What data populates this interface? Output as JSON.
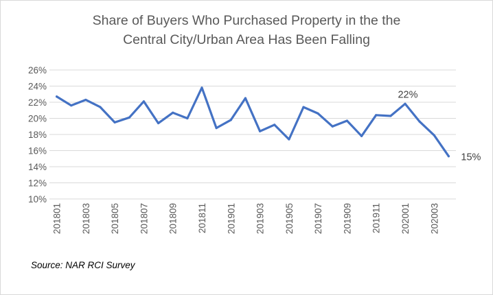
{
  "chart_data": {
    "type": "line",
    "title_lines": [
      "Share of Buyers Who Purchased Property in the the",
      "Central City/Urban Area Has Been Falling"
    ],
    "xlabel": "",
    "ylabel": "",
    "ylim": [
      10,
      26
    ],
    "ytick_step": 2,
    "ytick_labels": [
      "10%",
      "12%",
      "14%",
      "16%",
      "18%",
      "20%",
      "22%",
      "24%",
      "26%"
    ],
    "x": [
      "201801",
      "201802",
      "201803",
      "201804",
      "201805",
      "201806",
      "201807",
      "201808",
      "201809",
      "201810",
      "201811",
      "201812",
      "201901",
      "201902",
      "201903",
      "201904",
      "201905",
      "201906",
      "201907",
      "201908",
      "201909",
      "201910",
      "201911",
      "201912",
      "202001",
      "202002",
      "202003",
      "202004"
    ],
    "x_tick_labels": [
      "201801",
      "201803",
      "201805",
      "201807",
      "201809",
      "201811",
      "201901",
      "201903",
      "201905",
      "201907",
      "201909",
      "201911",
      "202001",
      "202003"
    ],
    "series": [
      {
        "values": [
          22.7,
          21.6,
          22.3,
          21.4,
          19.5,
          20.1,
          22.1,
          19.4,
          20.7,
          20.0,
          23.8,
          18.8,
          19.8,
          22.5,
          18.4,
          19.2,
          17.4,
          21.4,
          20.6,
          19.0,
          19.7,
          17.8,
          20.4,
          20.3,
          21.8,
          19.6,
          17.9,
          15.3
        ],
        "color": "#4472C4"
      }
    ],
    "annotations": [
      {
        "index": 24,
        "text": "22%"
      },
      {
        "index": 27,
        "text": "15%"
      }
    ],
    "grid": "horizontal",
    "legend": "none"
  },
  "source": "Source: NAR RCI Survey"
}
